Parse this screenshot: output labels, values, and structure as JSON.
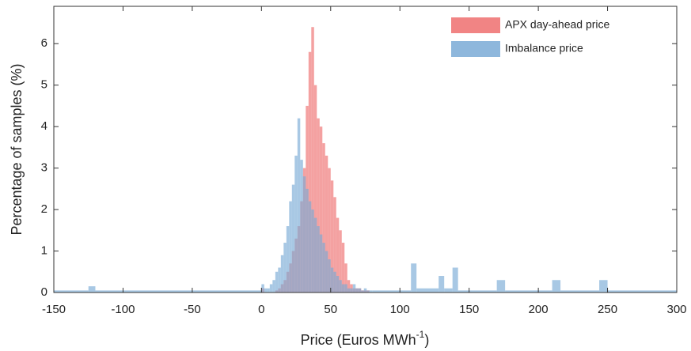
{
  "chart_data": {
    "type": "histogram",
    "xlabel": [
      "Price (Euros MWh",
      "-1",
      ")"
    ],
    "ylabel": "Percentage of samples (%)",
    "bins": [
      -150,
      -125,
      -120,
      -50,
      0,
      2,
      4,
      6,
      8,
      10,
      12,
      14,
      16,
      18,
      20,
      22,
      24,
      26,
      28,
      30,
      32,
      34,
      36,
      38,
      40,
      42,
      44,
      46,
      48,
      50,
      52,
      54,
      56,
      58,
      60,
      62,
      64,
      66,
      68,
      70,
      72,
      74,
      76,
      78,
      80,
      108,
      112,
      128,
      132,
      138,
      142,
      170,
      176,
      210,
      216,
      244,
      250,
      300
    ],
    "series": [
      {
        "name": "APX day-ahead price",
        "color": "#ee6e6e",
        "values": [
          0,
          0,
          0,
          0,
          0.1,
          0,
          0,
          0,
          0,
          0.05,
          0.1,
          0.2,
          0.3,
          0.5,
          0.7,
          1.0,
          1.3,
          1.6,
          2.2,
          3.0,
          4.5,
          5.8,
          6.4,
          5.0,
          4.2,
          4.0,
          3.6,
          3.3,
          3.0,
          2.7,
          2.3,
          1.8,
          1.5,
          1.2,
          0.7,
          0.3,
          0.2,
          0.1,
          0.1,
          0.1,
          0.05,
          0.05,
          0.05,
          0,
          0,
          0,
          0,
          0,
          0,
          0,
          0,
          0,
          0,
          0,
          0,
          0,
          0
        ]
      },
      {
        "name": "Imbalance price",
        "color": "#7aaad6",
        "values": [
          0.05,
          0.15,
          0.05,
          0.05,
          0.2,
          0.1,
          0.1,
          0.2,
          0.3,
          0.5,
          0.6,
          0.9,
          1.2,
          1.6,
          2.2,
          2.6,
          3.3,
          4.2,
          3.2,
          2.8,
          2.5,
          2.2,
          2.0,
          1.8,
          1.6,
          1.4,
          1.2,
          1.0,
          0.8,
          0.6,
          0.5,
          0.4,
          0.3,
          0.2,
          0.2,
          0.1,
          0.1,
          0.2,
          0.1,
          0.1,
          0.05,
          0.1,
          0.05,
          0.05,
          0.05,
          0.7,
          0.1,
          0.4,
          0.1,
          0.6,
          0.05,
          0.3,
          0.05,
          0.3,
          0.05,
          0.3,
          0.05
        ]
      }
    ],
    "xlim": [
      -150,
      300
    ],
    "ylim": [
      0,
      6.9
    ],
    "xticks": [
      -150,
      -100,
      -50,
      0,
      50,
      100,
      150,
      200,
      250,
      300
    ],
    "yticks": [
      0,
      1,
      2,
      3,
      4,
      5,
      6
    ],
    "legend": "upper right"
  }
}
